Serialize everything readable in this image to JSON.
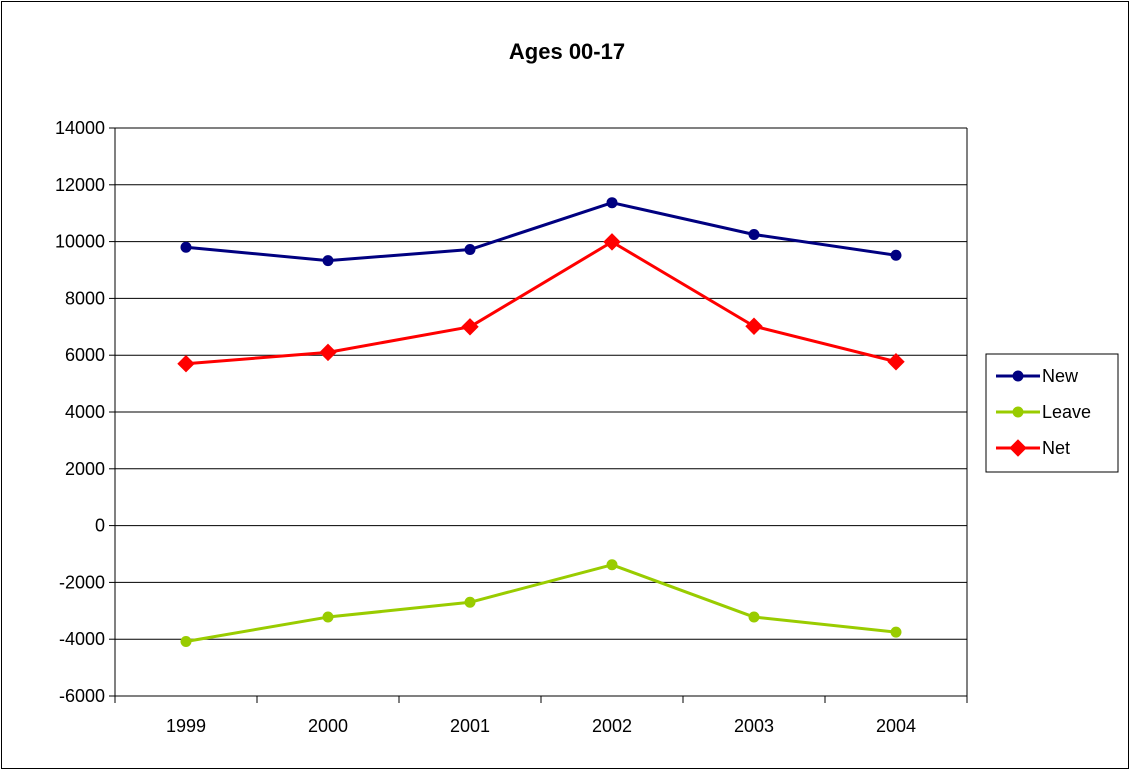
{
  "chart_data": {
    "type": "line",
    "title": "Ages 00-17",
    "xlabel": "",
    "ylabel": "",
    "categories": [
      "1999",
      "2000",
      "2001",
      "2002",
      "2003",
      "2004"
    ],
    "ylim": [
      -6000,
      14000
    ],
    "yticks": [
      -6000,
      -4000,
      -2000,
      0,
      2000,
      4000,
      6000,
      8000,
      10000,
      12000,
      14000
    ],
    "grid": true,
    "legend_position": "right",
    "series": [
      {
        "name": "New",
        "color": "#000080",
        "marker": "circle",
        "values": [
          9800,
          9330,
          9720,
          11370,
          10250,
          9520
        ]
      },
      {
        "name": "Leave",
        "color": "#99CC00",
        "marker": "circle",
        "values": [
          -4080,
          -3220,
          -2700,
          -1380,
          -3220,
          -3750
        ]
      },
      {
        "name": "Net",
        "color": "#FF0000",
        "marker": "diamond",
        "values": [
          5700,
          6100,
          7000,
          9990,
          7020,
          5770
        ]
      }
    ]
  }
}
